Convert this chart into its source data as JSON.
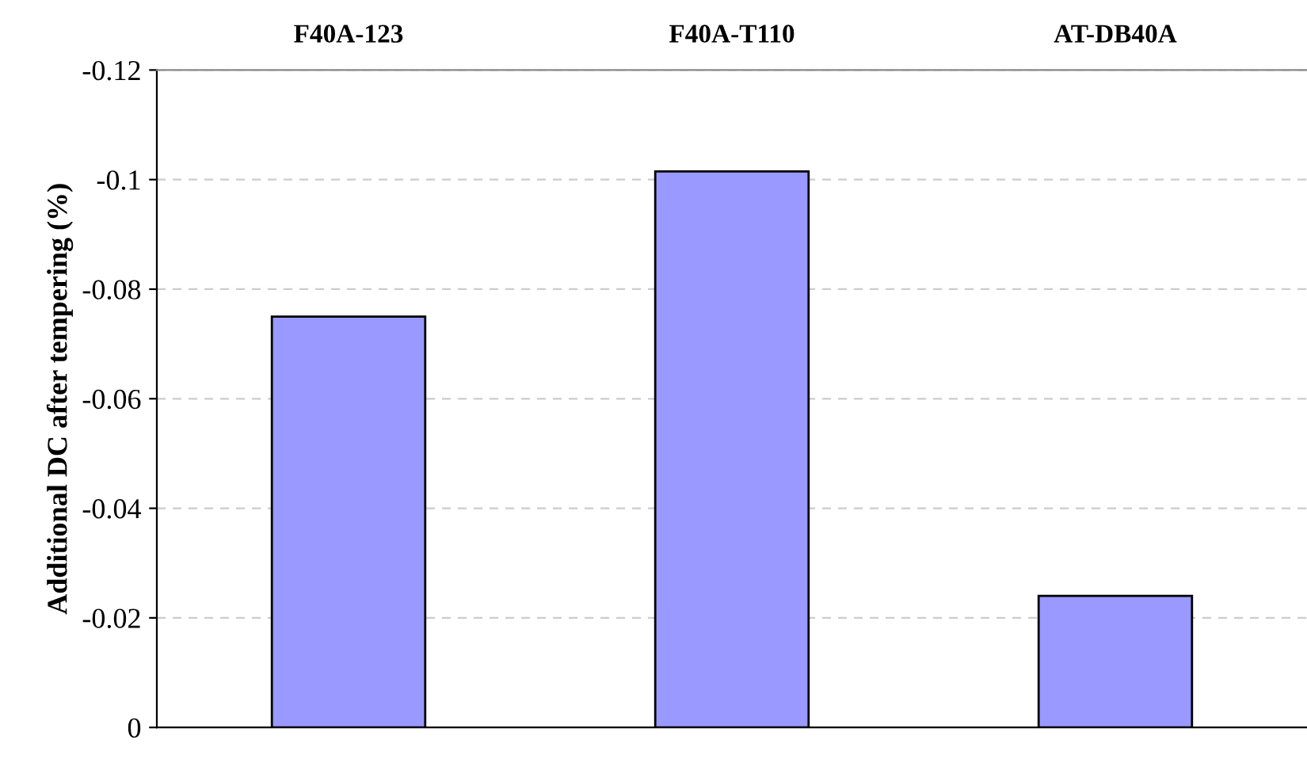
{
  "chart_data": {
    "type": "bar",
    "ylabel": "Additional DC after tempering (%)",
    "categories": [
      "F40A-123",
      "F40A-T110",
      "AT-DB40A"
    ],
    "values": [
      -0.075,
      -0.1015,
      -0.024
    ],
    "color": "#9999ff",
    "ylim": [
      0,
      -0.12
    ],
    "yticks": [
      0,
      -0.02,
      -0.04,
      -0.06,
      -0.08,
      -0.1,
      -0.12
    ],
    "grid": "y"
  }
}
